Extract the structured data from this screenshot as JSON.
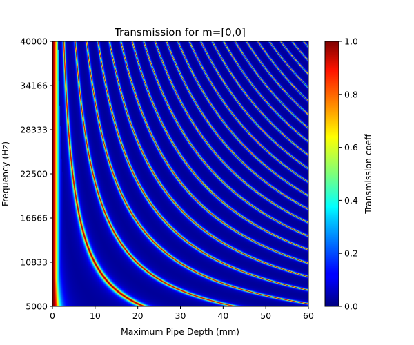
{
  "chart_data": {
    "type": "heatmap",
    "title": "Transmission for m=[0,0]",
    "xlabel": "Maximum Pipe Depth (mm)",
    "ylabel": "Frequency (Hz)",
    "xlim": [
      0,
      60
    ],
    "ylim": [
      5000,
      40000
    ],
    "x_ticks": [
      0,
      10,
      20,
      30,
      40,
      50,
      60
    ],
    "y_ticks": [
      5000,
      10833,
      16666,
      22500,
      28333,
      34166,
      40000
    ],
    "colorbar": {
      "label": "Transmission coeff",
      "range": [
        0.0,
        1.0
      ],
      "ticks": [
        "0.0",
        "0.2",
        "0.4",
        "0.6",
        "0.8",
        "1.0"
      ],
      "colormap": "jet"
    },
    "resonance_model": {
      "description": "Transmission peaks (value 1.0) along curves depth × frequency ≈ n × 107000 mm·Hz, n = 1, 2, 3, …",
      "n_values": [
        1,
        2,
        3,
        4,
        5,
        6,
        7,
        8,
        9,
        10,
        11,
        12,
        13,
        14,
        15,
        16,
        17,
        18,
        19,
        20,
        21,
        22
      ],
      "depth_times_frequency_step": 107000,
      "background_value": 0.02
    }
  }
}
